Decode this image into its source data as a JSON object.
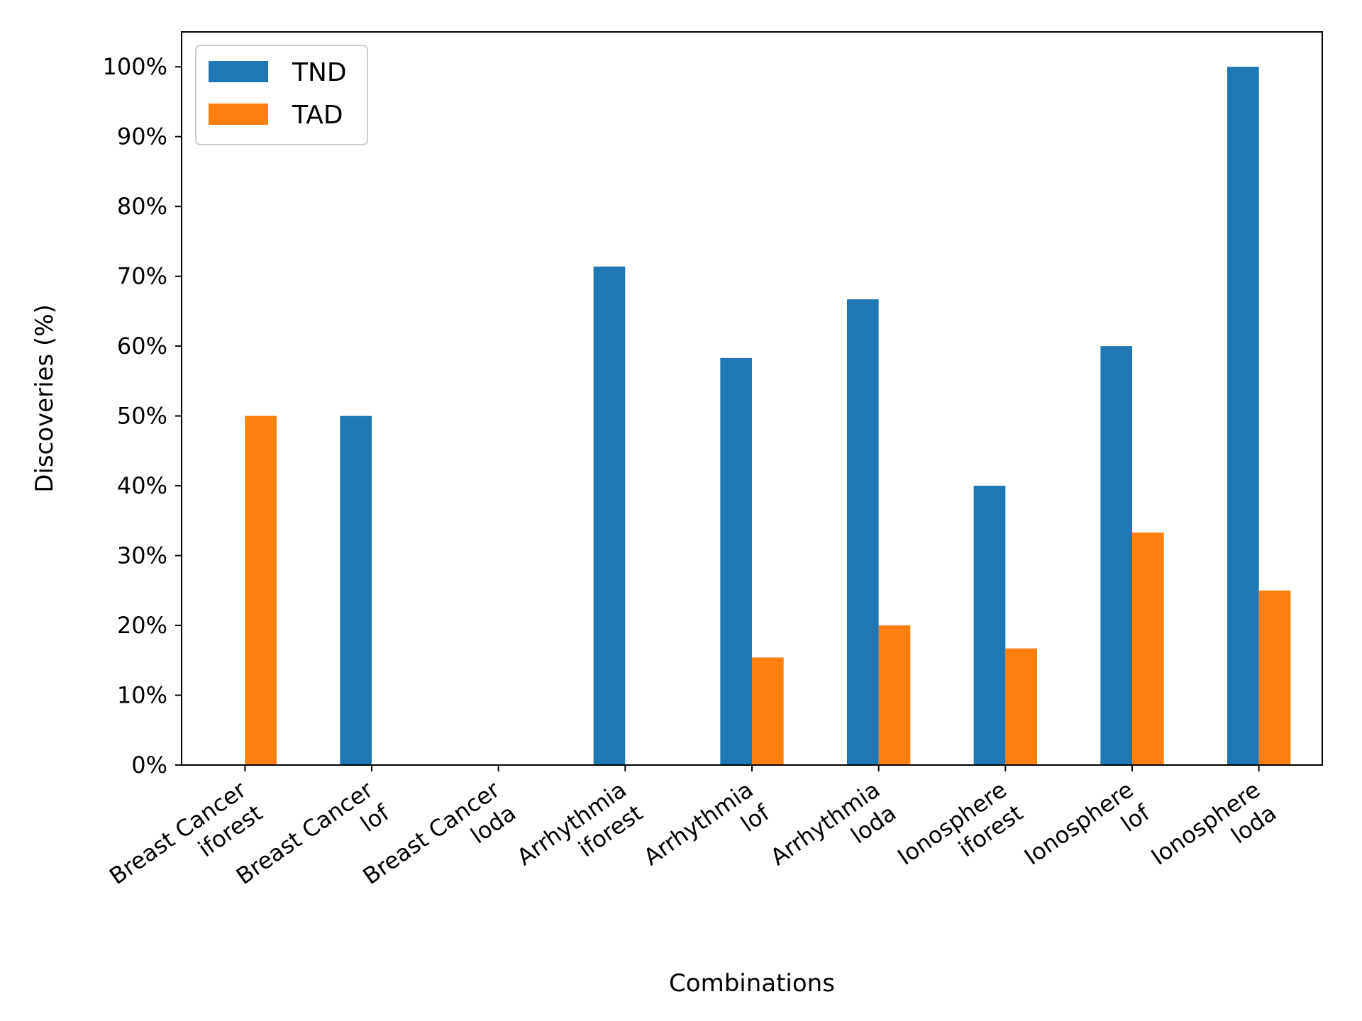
{
  "chart_data": {
    "type": "bar",
    "title": "",
    "xlabel": "Combinations",
    "ylabel": "Discoveries (%)",
    "ylim": [
      0,
      105
    ],
    "yticks": [
      0,
      10,
      20,
      30,
      40,
      50,
      60,
      70,
      80,
      90,
      100
    ],
    "ytick_suffix": "%",
    "grid": false,
    "legend_position": "top-left",
    "categories": [
      [
        "Breast Cancer",
        "iforest"
      ],
      [
        "Breast Cancer",
        "lof"
      ],
      [
        "Breast Cancer",
        "loda"
      ],
      [
        "Arrhythmia",
        "iforest"
      ],
      [
        "Arrhythmia",
        "lof"
      ],
      [
        "Arrhythmia",
        "loda"
      ],
      [
        "Ionosphere",
        "iforest"
      ],
      [
        "Ionosphere",
        "lof"
      ],
      [
        "Ionosphere",
        "loda"
      ]
    ],
    "series": [
      {
        "name": "TND",
        "color": "#1f77b4",
        "values": [
          0,
          50,
          0,
          71.4,
          58.3,
          66.7,
          40,
          60,
          100
        ]
      },
      {
        "name": "TAD",
        "color": "#ff7f0e",
        "values": [
          50,
          0,
          0,
          0,
          15.4,
          20,
          16.7,
          33.3,
          25
        ]
      }
    ]
  }
}
